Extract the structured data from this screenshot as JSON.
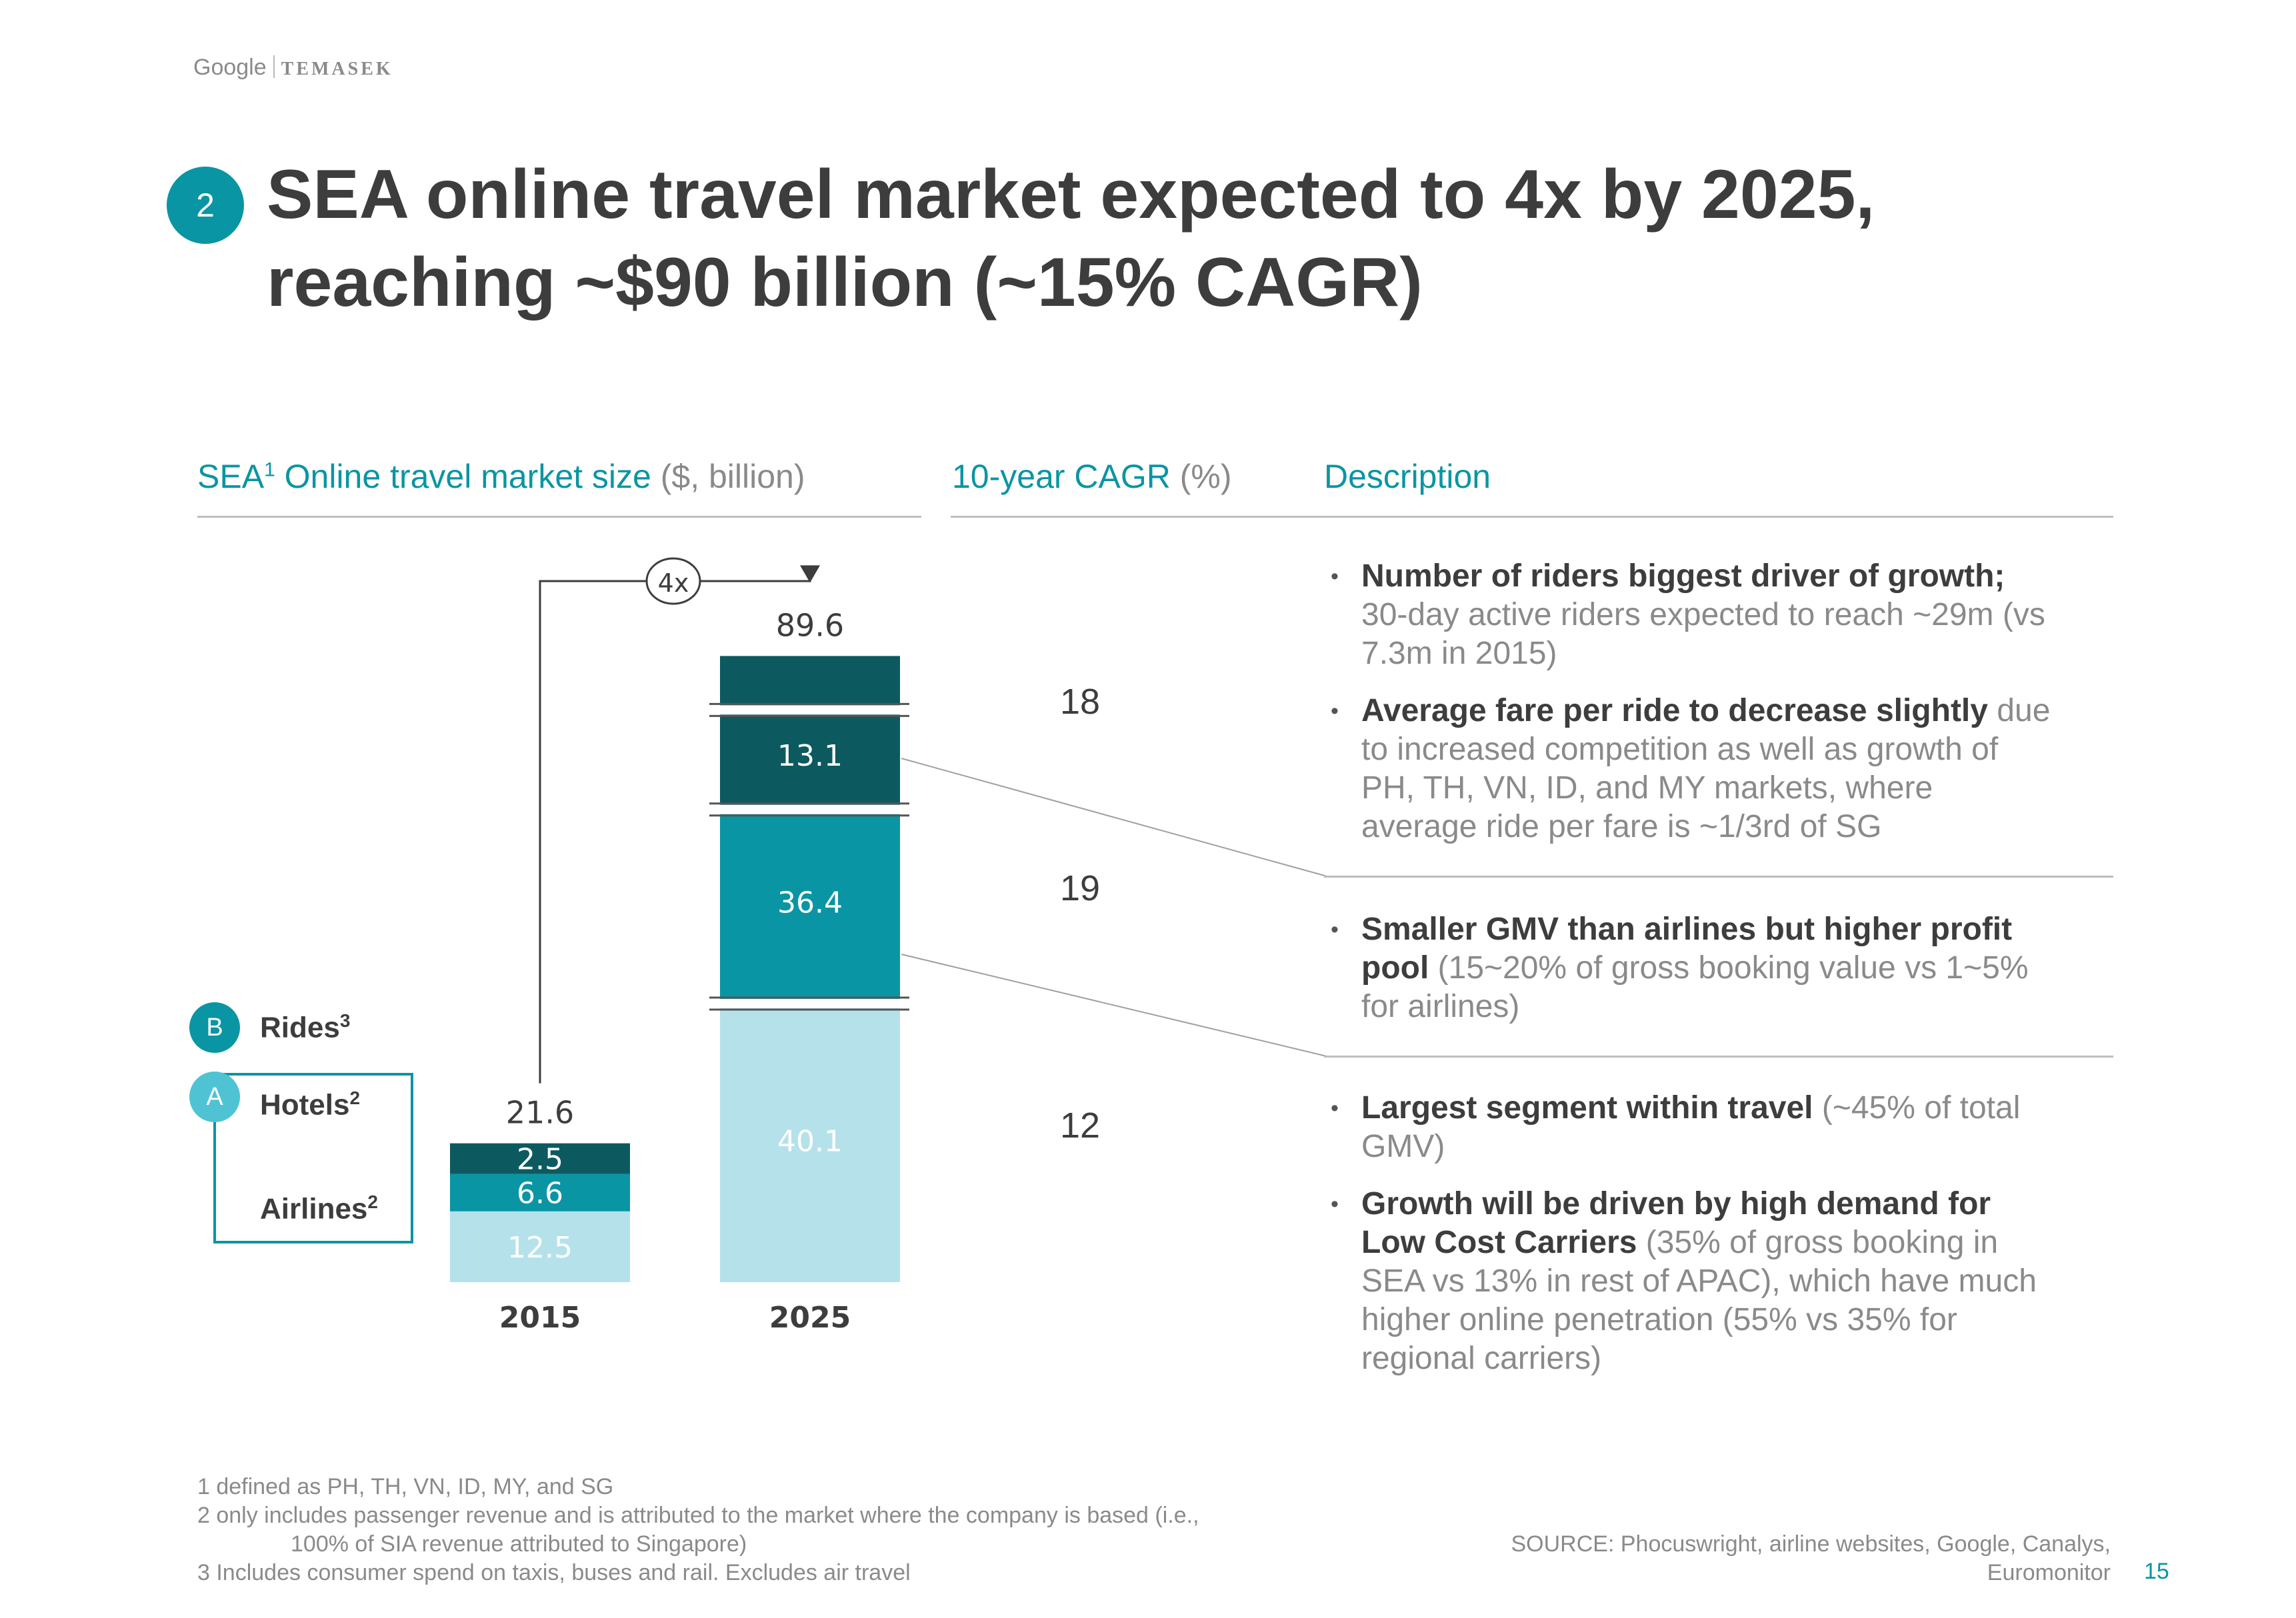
{
  "logo": {
    "google": "Google",
    "temasek": "TEMASEK"
  },
  "badge": "2",
  "title_line1": "SEA online travel market expected to 4x by 2025,",
  "title_line2": "reaching ~$90 billion (~15% CAGR)",
  "headers": {
    "market": "SEA",
    "market_sup": "1",
    "market_rest": " Online travel market size ",
    "market_unit": "($, billion)",
    "cagr": "10-year CAGR ",
    "cagr_unit": "(%)",
    "description": "Description"
  },
  "legend": [
    {
      "badge": "B",
      "label": "Rides",
      "sup": "3"
    },
    {
      "badge": "A",
      "label": "Hotels",
      "sup": "2"
    },
    {
      "badge": "",
      "label": "Airlines",
      "sup": "2"
    }
  ],
  "multiplier": "4x",
  "chart_data": {
    "type": "bar",
    "stacked": true,
    "title": "SEA Online travel market size ($, billion)",
    "categories": [
      "2015",
      "2025"
    ],
    "series": [
      {
        "name": "Airlines",
        "values": [
          12.5,
          40.1
        ],
        "color": "#b5e2ea"
      },
      {
        "name": "Hotels",
        "values": [
          6.6,
          36.4
        ],
        "color": "#0a95a4"
      },
      {
        "name": "Rides",
        "values": [
          2.5,
          13.1
        ],
        "color": "#0c5a5f"
      }
    ],
    "totals": [
      21.6,
      89.6
    ],
    "axis_break_on": "2025",
    "annotation": "4x"
  },
  "cagr_values": [
    {
      "segment": "Rides",
      "value": "18"
    },
    {
      "segment": "Hotels",
      "value": "19"
    },
    {
      "segment": "Airlines",
      "value": "12"
    }
  ],
  "descriptions": {
    "rides": [
      {
        "bold": "Number of riders biggest driver of growth;",
        "rest": " 30-day active riders expected to reach ~29m (vs 7.3m in 2015)"
      },
      {
        "bold": "Average fare per ride to decrease slightly",
        "rest": " due to increased competition as well as growth of PH, TH, VN, ID, and MY markets, where average ride per fare is ~1/3rd of SG"
      }
    ],
    "hotels": [
      {
        "bold": "Smaller GMV than airlines but higher profit pool",
        "rest": " (15~20% of gross booking value vs 1~5% for airlines)"
      }
    ],
    "airlines": [
      {
        "bold": "Largest segment within travel",
        "rest": " (~45% of total GMV)"
      },
      {
        "bold": "Growth will be driven by high demand for Low Cost Carriers",
        "rest": " (35% of gross booking in SEA vs 13% in rest of APAC), which have much higher online penetration (55% vs 35% for regional carriers)"
      }
    ]
  },
  "footnotes": {
    "f1": "1 defined as PH, TH, VN, ID, MY, and SG",
    "f2a": "2 only includes passenger revenue and is attributed to the market where the company is based (i.e.,",
    "f2b": "100% of SIA revenue attributed to Singapore)",
    "f3": "3 Includes consumer spend on taxis, buses and rail. Excludes air travel"
  },
  "source_line1": "SOURCE: Phocuswright, airline websites, Google, Canalys,",
  "source_line2": "Euromonitor",
  "page_number": "15"
}
